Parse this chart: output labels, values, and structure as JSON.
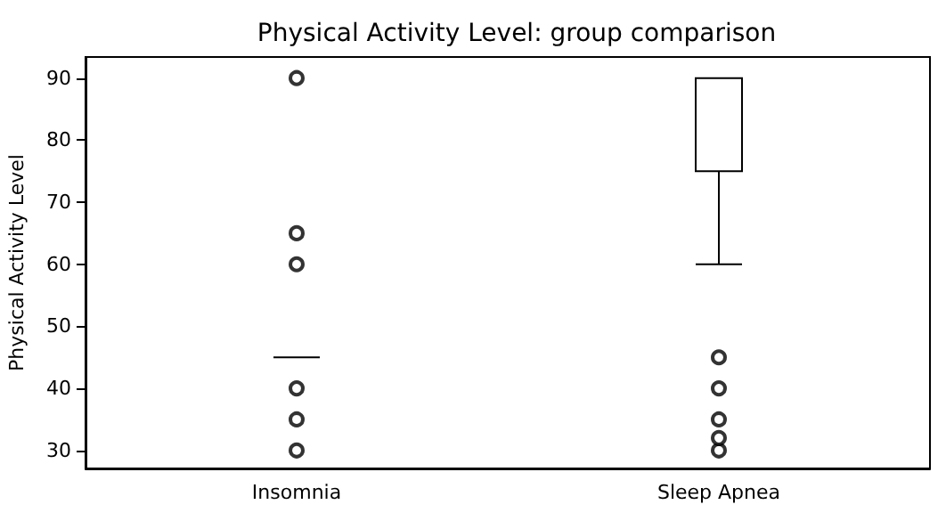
{
  "chart_data": {
    "type": "box",
    "title": "Physical Activity Level: group comparison",
    "ylabel": "Physical Activity Level",
    "categories": [
      "Insomnia",
      "Sleep Apnea"
    ],
    "boxes": [
      {
        "low": 45,
        "q1": 45,
        "median": 45,
        "q3": 45,
        "high": 45,
        "outliers": [
          30,
          35,
          40,
          60,
          65,
          90
        ]
      },
      {
        "low": 60,
        "q1": 75,
        "median": 75,
        "q3": 90,
        "high": 90,
        "outliers": [
          30,
          32,
          35,
          40,
          45
        ]
      }
    ],
    "ylim": [
      27.1,
      93.4
    ],
    "yticks": [
      30,
      40,
      50,
      60,
      70,
      80,
      90
    ],
    "grid": false
  }
}
